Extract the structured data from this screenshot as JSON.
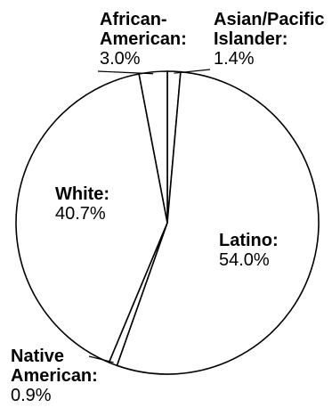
{
  "chart_data": {
    "type": "pie",
    "title": "",
    "slices": [
      {
        "label": "Latino",
        "label_lines": [
          "Latino:"
        ],
        "value": 54.0,
        "value_label": "54.0%"
      },
      {
        "label": "Native American",
        "label_lines": [
          "Native",
          "American:"
        ],
        "value": 0.9,
        "value_label": "0.9%"
      },
      {
        "label": "White",
        "label_lines": [
          "White:"
        ],
        "value": 40.7,
        "value_label": "40.7%"
      },
      {
        "label": "African-American",
        "label_lines": [
          "African-",
          "American:"
        ],
        "value": 3.0,
        "value_label": "3.0%"
      },
      {
        "label": "Asian/Pacific Islander",
        "label_lines": [
          "Asian/Pacific",
          "Islander:"
        ],
        "value": 1.4,
        "value_label": "1.4%"
      }
    ],
    "start": "12 o'clock, clockwise (Asian/Pacific Islander first)",
    "fill_color": "#ffffff",
    "outline_color": "#000000",
    "legend": "none (direct labels)"
  }
}
